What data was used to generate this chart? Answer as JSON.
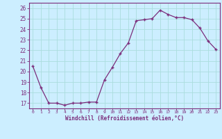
{
  "x": [
    0,
    1,
    2,
    3,
    4,
    5,
    6,
    7,
    8,
    9,
    10,
    11,
    12,
    13,
    14,
    15,
    16,
    17,
    18,
    19,
    20,
    21,
    22,
    23
  ],
  "y": [
    20.5,
    18.5,
    17.0,
    17.0,
    16.8,
    17.0,
    17.0,
    17.1,
    17.1,
    19.2,
    20.4,
    21.7,
    22.7,
    24.8,
    24.9,
    25.0,
    25.8,
    25.4,
    25.1,
    25.1,
    24.9,
    24.1,
    22.9,
    22.1
  ],
  "xlabel": "Windchill (Refroidissement éolien,°C)",
  "xlim": [
    -0.5,
    23.5
  ],
  "ylim": [
    16.5,
    26.5
  ],
  "yticks": [
    17,
    18,
    19,
    20,
    21,
    22,
    23,
    24,
    25,
    26
  ],
  "xticks": [
    0,
    1,
    2,
    3,
    4,
    5,
    6,
    7,
    8,
    9,
    10,
    11,
    12,
    13,
    14,
    15,
    16,
    17,
    18,
    19,
    20,
    21,
    22,
    23
  ],
  "line_color": "#7b2d7b",
  "marker": "+",
  "bg_color": "#cceeff",
  "grid_color": "#aadddd",
  "tick_color": "#7b2d7b",
  "label_color": "#7b2d7b"
}
